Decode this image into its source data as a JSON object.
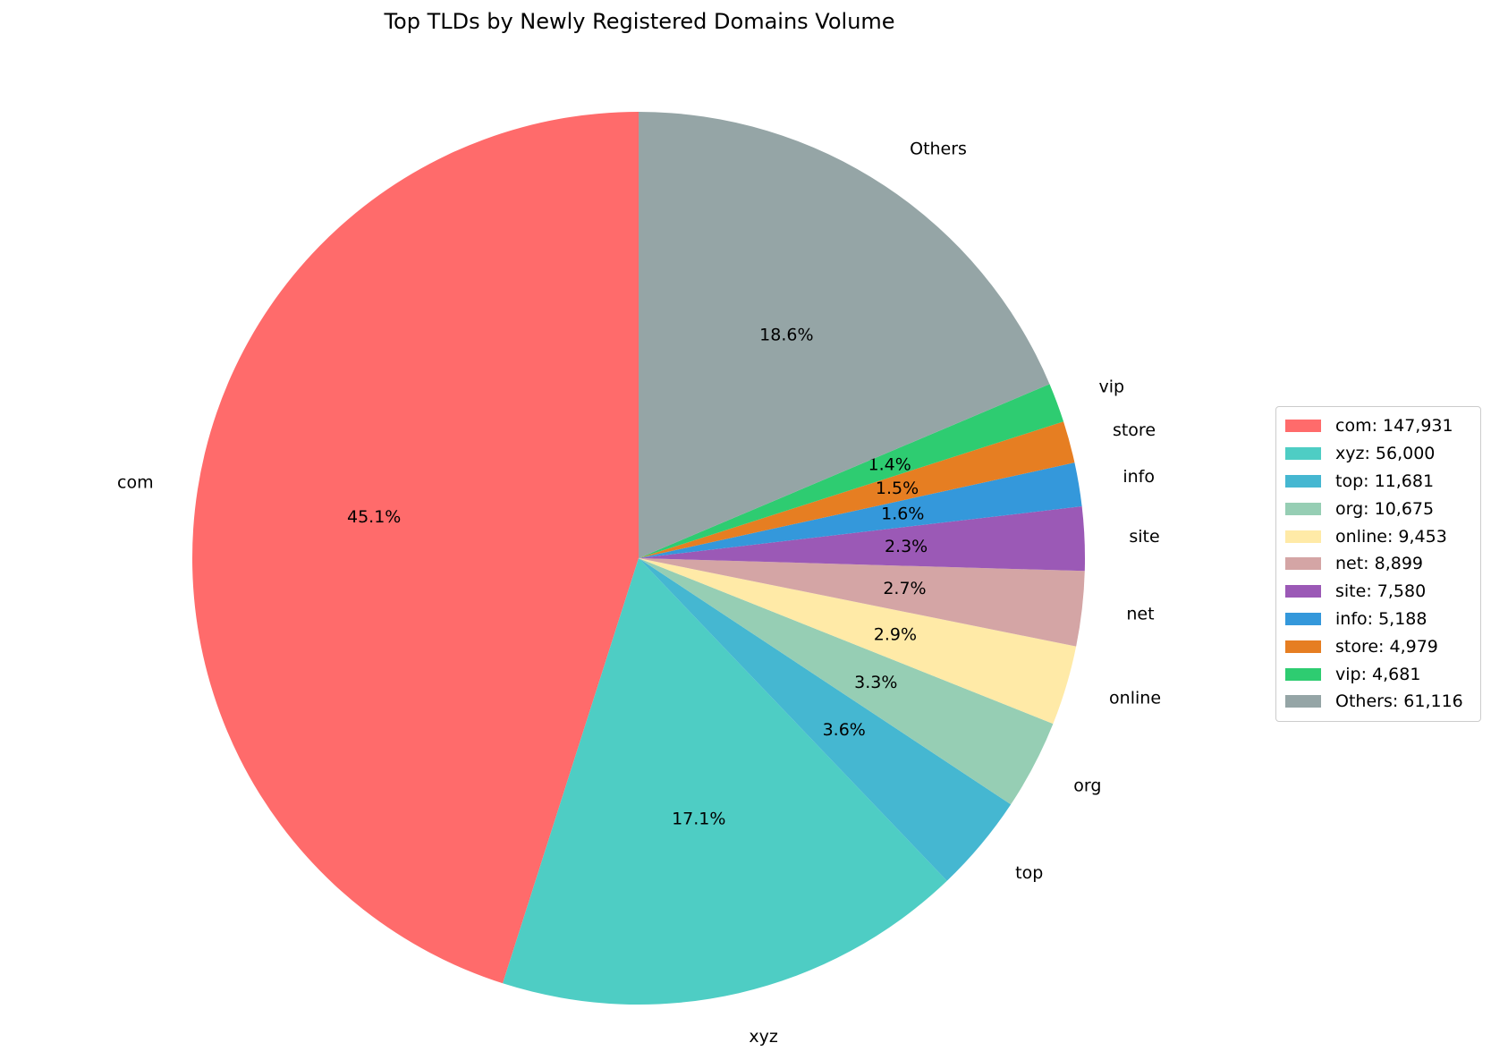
{
  "chart_data": {
    "type": "pie",
    "title": "Top TLDs by Newly Registered Domains Volume",
    "start_angle_deg": 90,
    "direction": "counterclockwise",
    "legend_position": "right",
    "slices": [
      {
        "label": "com",
        "value": 147931,
        "pct_label": "45.1%",
        "legend": "com: 147,931",
        "color": "#ff6b6b"
      },
      {
        "label": "xyz",
        "value": 56000,
        "pct_label": "17.1%",
        "legend": "xyz: 56,000",
        "color": "#4ecdc4"
      },
      {
        "label": "top",
        "value": 11681,
        "pct_label": "3.6%",
        "legend": "top: 11,681",
        "color": "#45b7d1"
      },
      {
        "label": "org",
        "value": 10675,
        "pct_label": "3.3%",
        "legend": "org: 10,675",
        "color": "#96ceb4"
      },
      {
        "label": "online",
        "value": 9453,
        "pct_label": "2.9%",
        "legend": "online: 9,453",
        "color": "#ffeaa7"
      },
      {
        "label": "net",
        "value": 8899,
        "pct_label": "2.7%",
        "legend": "net: 8,899",
        "color": "#d4a5a5"
      },
      {
        "label": "site",
        "value": 7580,
        "pct_label": "2.3%",
        "legend": "site: 7,580",
        "color": "#9b59b6"
      },
      {
        "label": "info",
        "value": 5188,
        "pct_label": "1.6%",
        "legend": "info: 5,188",
        "color": "#3498db"
      },
      {
        "label": "store",
        "value": 4979,
        "pct_label": "1.5%",
        "legend": "store: 4,979",
        "color": "#e67e22"
      },
      {
        "label": "vip",
        "value": 4681,
        "pct_label": "1.4%",
        "legend": "vip: 4,681",
        "color": "#2ecc71"
      },
      {
        "label": "Others",
        "value": 61116,
        "pct_label": "18.6%",
        "legend": "Others: 61,116",
        "color": "#95a5a6"
      }
    ]
  }
}
